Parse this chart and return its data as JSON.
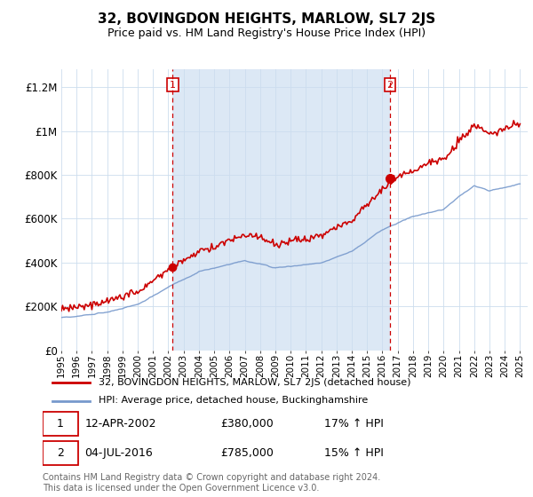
{
  "title": "32, BOVINGDON HEIGHTS, MARLOW, SL7 2JS",
  "subtitle": "Price paid vs. HM Land Registry's House Price Index (HPI)",
  "ylabel_ticks": [
    "£0",
    "£200K",
    "£400K",
    "£600K",
    "£800K",
    "£1M",
    "£1.2M"
  ],
  "ytick_values": [
    0,
    200000,
    400000,
    600000,
    800000,
    1000000,
    1200000
  ],
  "ylim": [
    0,
    1280000
  ],
  "xlim_start": 1995.0,
  "xlim_end": 2025.5,
  "red_line_color": "#cc0000",
  "blue_line_color": "#7799cc",
  "fill_color": "#dce8f5",
  "dashed_line_color": "#cc0000",
  "marker1_x": 2002.28,
  "marker1_y": 380000,
  "marker2_x": 2016.5,
  "marker2_y": 785000,
  "legend_red_label": "32, BOVINGDON HEIGHTS, MARLOW, SL7 2JS (detached house)",
  "legend_blue_label": "HPI: Average price, detached house, Buckinghamshire",
  "annotation1_num": "1",
  "annotation1_date": "12-APR-2002",
  "annotation1_price": "£380,000",
  "annotation1_hpi": "17% ↑ HPI",
  "annotation2_num": "2",
  "annotation2_date": "04-JUL-2016",
  "annotation2_price": "£785,000",
  "annotation2_hpi": "15% ↑ HPI",
  "footer": "Contains HM Land Registry data © Crown copyright and database right 2024.\nThis data is licensed under the Open Government Licence v3.0."
}
